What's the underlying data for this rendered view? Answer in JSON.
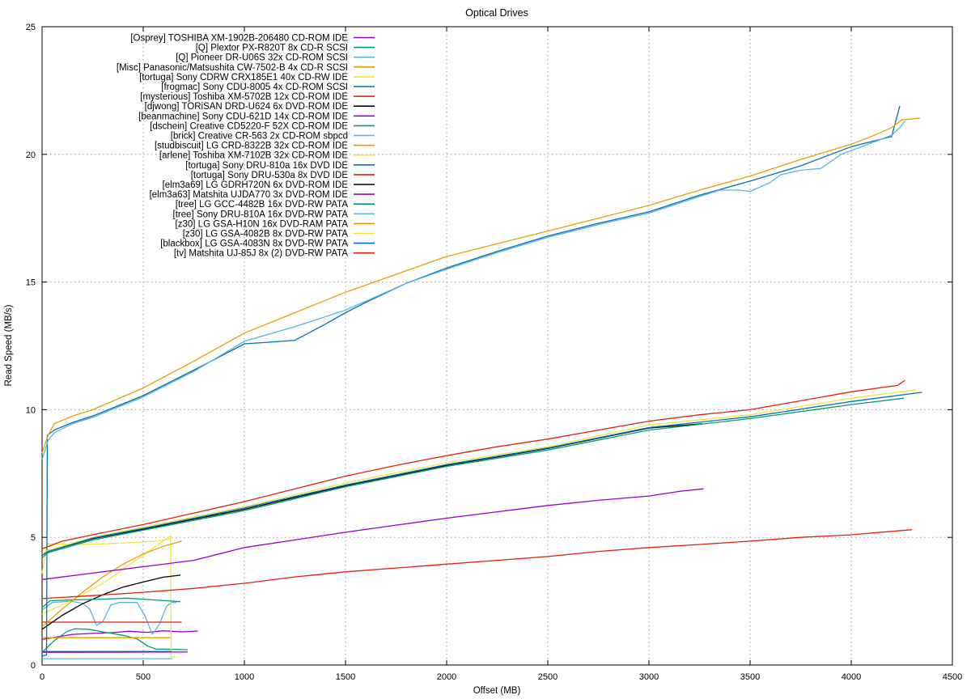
{
  "chart_data": {
    "type": "line",
    "title": "Optical Drives",
    "xlabel": "Offset (MB)",
    "ylabel": "Read Speed (MB/s)",
    "xlim": [
      0,
      4500
    ],
    "ylim": [
      0,
      25
    ],
    "x_ticks": [
      0,
      500,
      1000,
      1500,
      2000,
      2500,
      3000,
      3500,
      4000,
      4500
    ],
    "y_ticks": [
      0,
      5,
      10,
      15,
      20,
      25
    ],
    "grid": true,
    "grid_style": "dotted",
    "legend_position": "top-left-inside",
    "palette_cycle": [
      "#9400d3",
      "#009e73",
      "#56b4e9",
      "#e69f00",
      "#f0e442",
      "#0072b2",
      "#e51e10",
      "#000000"
    ],
    "series": [
      {
        "name": "[Osprey] TOSHIBA XM-1902B-206480 CD-ROM IDE",
        "color": "#9400d3",
        "points": [
          [
            0,
            1.0
          ],
          [
            60,
            1.08
          ],
          [
            150,
            1.2
          ],
          [
            250,
            1.24
          ],
          [
            350,
            1.27
          ],
          [
            430,
            1.32
          ],
          [
            520,
            1.28
          ],
          [
            600,
            1.34
          ],
          [
            690,
            1.3
          ],
          [
            770,
            1.33
          ]
        ]
      },
      {
        "name": "[Q] Plextor PX-R820T 8x CD-R SCSI",
        "color": "#009e73",
        "points": [
          [
            0,
            0.5
          ],
          [
            60,
            0.95
          ],
          [
            120,
            1.3
          ],
          [
            160,
            1.42
          ],
          [
            230,
            1.4
          ],
          [
            320,
            1.27
          ],
          [
            410,
            1.15
          ],
          [
            470,
            1.02
          ],
          [
            520,
            0.75
          ],
          [
            560,
            0.63
          ],
          [
            650,
            0.61
          ],
          [
            720,
            0.6
          ]
        ]
      },
      {
        "name": "[Q] Pioneer DR-U06S 32x CD-ROM SCSI",
        "color": "#56b4e9",
        "points": [
          [
            0,
            2.15
          ],
          [
            50,
            2.45
          ],
          [
            140,
            2.5
          ],
          [
            200,
            2.42
          ],
          [
            235,
            2.2
          ],
          [
            270,
            1.55
          ],
          [
            300,
            1.7
          ],
          [
            340,
            2.35
          ],
          [
            380,
            2.45
          ],
          [
            470,
            2.45
          ],
          [
            510,
            1.9
          ],
          [
            545,
            1.2
          ],
          [
            580,
            1.6
          ],
          [
            615,
            2.3
          ],
          [
            640,
            2.45
          ],
          [
            665,
            2.45
          ]
        ]
      },
      {
        "name": "[Misc] Panasonic/Matsushita CW-7502-B 4x CD-R SCSI",
        "color": "#e69f00",
        "points": [
          [
            5,
            1.07
          ],
          [
            640,
            1.07
          ]
        ]
      },
      {
        "name": "[tortuga] Sony CDRW CRX185E1 40x CD-RW IDE",
        "color": "#f0e442",
        "points": [
          [
            0,
            2.0
          ],
          [
            100,
            2.35
          ],
          [
            200,
            2.75
          ],
          [
            300,
            3.2
          ],
          [
            400,
            3.75
          ],
          [
            500,
            4.3
          ],
          [
            570,
            4.7
          ],
          [
            635,
            5.05
          ],
          [
            638,
            0.32
          ],
          [
            660,
            0.3
          ]
        ]
      },
      {
        "name": "[frogmac] Sony CDU-8005 4x CD-ROM SCSI",
        "color": "#0072b2",
        "points": [
          [
            0,
            0.53
          ],
          [
            640,
            0.53
          ]
        ]
      },
      {
        "name": "[mysterious] Toshiba XM-5702B 12x CD-ROM IDE",
        "color": "#e51e10",
        "points": [
          [
            0,
            1.68
          ],
          [
            690,
            1.68
          ]
        ]
      },
      {
        "name": "[djwong] TORiSAN DRD-U624 6x DVD-ROM IDE",
        "color": "#000000",
        "points": [
          [
            0,
            1.4
          ],
          [
            100,
            1.95
          ],
          [
            200,
            2.4
          ],
          [
            300,
            2.75
          ],
          [
            400,
            3.05
          ],
          [
            500,
            3.25
          ],
          [
            600,
            3.44
          ],
          [
            684,
            3.52
          ]
        ]
      },
      {
        "name": "[beanmachine] Sony CDU-621D 14x CD-ROM IDE",
        "color": "#9400d3",
        "points": [
          [
            0,
            0.5
          ],
          [
            720,
            0.51
          ]
        ]
      },
      {
        "name": "[dschein] Creative CD5220-F 52X CD-ROM IDE",
        "color": "#009e73",
        "points": [
          [
            0,
            2.25
          ],
          [
            40,
            2.52
          ],
          [
            150,
            2.55
          ],
          [
            300,
            2.58
          ],
          [
            420,
            2.62
          ],
          [
            550,
            2.55
          ],
          [
            684,
            2.48
          ]
        ]
      },
      {
        "name": "[brick] Creative CR-563 2x CD-ROM sbpcd",
        "color": "#56b4e9",
        "points": [
          [
            0,
            0.25
          ],
          [
            645,
            0.25
          ]
        ]
      },
      {
        "name": "[studbiscuit] LG CRD-8322B 32x CD-ROM IDE",
        "color": "#e69f00",
        "points": [
          [
            0,
            1.5
          ],
          [
            100,
            2.2
          ],
          [
            200,
            2.85
          ],
          [
            300,
            3.45
          ],
          [
            400,
            3.95
          ],
          [
            500,
            4.35
          ],
          [
            600,
            4.65
          ],
          [
            690,
            4.85
          ]
        ]
      },
      {
        "name": "[arlene] Toshiba XM-7102B 32x CD-ROM IDE",
        "color": "#f0e442",
        "points": [
          [
            0,
            3.6
          ],
          [
            25,
            4.75
          ],
          [
            150,
            4.72
          ],
          [
            300,
            4.74
          ],
          [
            450,
            4.8
          ],
          [
            570,
            4.85
          ],
          [
            635,
            4.95
          ]
        ]
      },
      {
        "name": "[tortuga] Sony DRU-810a 16x DVD IDE",
        "color": "#0072b2",
        "points": [
          [
            0,
            0.35
          ],
          [
            22,
            0.4
          ],
          [
            26,
            9.0
          ],
          [
            60,
            9.2
          ],
          [
            150,
            9.5
          ],
          [
            250,
            9.75
          ],
          [
            500,
            10.55
          ],
          [
            750,
            11.55
          ],
          [
            1000,
            12.58
          ],
          [
            1100,
            12.63
          ],
          [
            1250,
            12.72
          ],
          [
            1400,
            13.35
          ],
          [
            1500,
            13.8
          ],
          [
            1600,
            14.2
          ],
          [
            1800,
            14.95
          ],
          [
            2000,
            15.55
          ],
          [
            2250,
            16.2
          ],
          [
            2500,
            16.8
          ],
          [
            2750,
            17.3
          ],
          [
            3000,
            17.75
          ],
          [
            3250,
            18.4
          ],
          [
            3500,
            18.95
          ],
          [
            3750,
            19.55
          ],
          [
            4000,
            20.3
          ],
          [
            4100,
            20.5
          ],
          [
            4200,
            20.7
          ],
          [
            4240,
            21.9
          ]
        ]
      },
      {
        "name": "[tortuga] Sony DRU-530a 8x DVD IDE",
        "color": "#e51e10",
        "points": [
          [
            0,
            4.55
          ],
          [
            100,
            4.85
          ],
          [
            250,
            5.1
          ],
          [
            500,
            5.5
          ],
          [
            750,
            5.95
          ],
          [
            1000,
            6.4
          ],
          [
            1250,
            6.9
          ],
          [
            1500,
            7.4
          ],
          [
            1750,
            7.82
          ],
          [
            2000,
            8.2
          ],
          [
            2250,
            8.55
          ],
          [
            2500,
            8.85
          ],
          [
            2750,
            9.2
          ],
          [
            3000,
            9.55
          ],
          [
            3250,
            9.8
          ],
          [
            3500,
            10.0
          ],
          [
            3750,
            10.35
          ],
          [
            4000,
            10.7
          ],
          [
            4180,
            10.9
          ],
          [
            4230,
            10.95
          ],
          [
            4265,
            11.15
          ]
        ]
      },
      {
        "name": "[elm3a69] LG GDRH720N 6x DVD-ROM IDE",
        "color": "#000000",
        "points": [
          [
            0,
            4.3
          ],
          [
            30,
            4.45
          ],
          [
            250,
            4.95
          ],
          [
            500,
            5.32
          ],
          [
            1000,
            6.1
          ],
          [
            1500,
            7.02
          ],
          [
            2000,
            7.82
          ],
          [
            2500,
            8.48
          ],
          [
            3000,
            9.28
          ],
          [
            3265,
            9.45
          ]
        ]
      },
      {
        "name": "[elm3a63] Matshita UJDA770 3x DVD-ROM IDE",
        "color": "#9400d3",
        "points": [
          [
            0,
            3.35
          ],
          [
            250,
            3.6
          ],
          [
            500,
            3.85
          ],
          [
            750,
            4.1
          ],
          [
            1000,
            4.6
          ],
          [
            1250,
            4.9
          ],
          [
            1500,
            5.2
          ],
          [
            1750,
            5.48
          ],
          [
            2000,
            5.75
          ],
          [
            2250,
            6.0
          ],
          [
            2500,
            6.25
          ],
          [
            2750,
            6.45
          ],
          [
            3000,
            6.62
          ],
          [
            3150,
            6.8
          ],
          [
            3270,
            6.9
          ]
        ]
      },
      {
        "name": "[tree] LG GCC-4482B 16x DVD-RW PATA",
        "color": "#009e73",
        "points": [
          [
            0,
            4.2
          ],
          [
            30,
            4.4
          ],
          [
            250,
            4.9
          ],
          [
            500,
            5.28
          ],
          [
            1000,
            6.05
          ],
          [
            1500,
            6.98
          ],
          [
            2000,
            7.78
          ],
          [
            2500,
            8.42
          ],
          [
            3000,
            9.2
          ],
          [
            3500,
            9.65
          ],
          [
            4000,
            10.2
          ],
          [
            4260,
            10.45
          ]
        ]
      },
      {
        "name": "[tree] Sony DRU-810A 16x DVD-RW PATA",
        "color": "#56b4e9",
        "points": [
          [
            0,
            8.05
          ],
          [
            30,
            8.8
          ],
          [
            60,
            9.1
          ],
          [
            150,
            9.45
          ],
          [
            250,
            9.7
          ],
          [
            500,
            10.5
          ],
          [
            750,
            11.5
          ],
          [
            1000,
            12.68
          ],
          [
            1250,
            13.25
          ],
          [
            1500,
            13.9
          ],
          [
            1600,
            14.25
          ],
          [
            1800,
            14.95
          ],
          [
            2000,
            15.5
          ],
          [
            2250,
            16.15
          ],
          [
            2500,
            16.75
          ],
          [
            2750,
            17.25
          ],
          [
            3000,
            17.7
          ],
          [
            3250,
            18.35
          ],
          [
            3350,
            18.6
          ],
          [
            3450,
            18.6
          ],
          [
            3500,
            18.55
          ],
          [
            3600,
            18.9
          ],
          [
            3650,
            19.2
          ],
          [
            3750,
            19.38
          ],
          [
            3850,
            19.45
          ],
          [
            3950,
            20.0
          ],
          [
            4000,
            20.15
          ],
          [
            4100,
            20.45
          ],
          [
            4200,
            20.75
          ],
          [
            4240,
            21.05
          ],
          [
            4265,
            21.3
          ]
        ]
      },
      {
        "name": "[z30] LG GSA-H10N 16x DVD-RAM PATA",
        "color": "#e69f00",
        "points": [
          [
            0,
            8.3
          ],
          [
            30,
            9.0
          ],
          [
            60,
            9.45
          ],
          [
            150,
            9.75
          ],
          [
            250,
            10.0
          ],
          [
            500,
            10.85
          ],
          [
            750,
            11.9
          ],
          [
            1000,
            13.0
          ],
          [
            1250,
            13.8
          ],
          [
            1500,
            14.6
          ],
          [
            1750,
            15.3
          ],
          [
            2000,
            16.0
          ],
          [
            2250,
            16.5
          ],
          [
            2500,
            17.0
          ],
          [
            2750,
            17.5
          ],
          [
            3000,
            18.0
          ],
          [
            3250,
            18.6
          ],
          [
            3500,
            19.15
          ],
          [
            3750,
            19.8
          ],
          [
            4000,
            20.4
          ],
          [
            4100,
            20.7
          ],
          [
            4200,
            21.05
          ],
          [
            4250,
            21.35
          ],
          [
            4340,
            21.42
          ]
        ]
      },
      {
        "name": "[z30] LG GSA-4082B 8x DVD-RW PATA",
        "color": "#f0e442",
        "points": [
          [
            0,
            4.35
          ],
          [
            30,
            4.5
          ],
          [
            250,
            5.0
          ],
          [
            500,
            5.4
          ],
          [
            1000,
            6.2
          ],
          [
            1500,
            7.13
          ],
          [
            2000,
            7.92
          ],
          [
            2500,
            8.55
          ],
          [
            3000,
            9.4
          ],
          [
            3500,
            9.8
          ],
          [
            4000,
            10.45
          ],
          [
            4320,
            10.78
          ]
        ]
      },
      {
        "name": "[blackbox] LG GSA-4083N 8x DVD-RW PATA",
        "color": "#0072b2",
        "points": [
          [
            0,
            4.3
          ],
          [
            30,
            4.45
          ],
          [
            250,
            4.97
          ],
          [
            500,
            5.35
          ],
          [
            1000,
            6.15
          ],
          [
            1500,
            7.05
          ],
          [
            2000,
            7.85
          ],
          [
            2500,
            8.5
          ],
          [
            3000,
            9.3
          ],
          [
            3500,
            9.72
          ],
          [
            4000,
            10.32
          ],
          [
            4350,
            10.68
          ]
        ]
      },
      {
        "name": "[tv] Matshita UJ-85J 8x (2) DVD-RW PATA",
        "color": "#e51e10",
        "points": [
          [
            0,
            2.6
          ],
          [
            250,
            2.72
          ],
          [
            500,
            2.85
          ],
          [
            750,
            3.0
          ],
          [
            1000,
            3.2
          ],
          [
            1250,
            3.45
          ],
          [
            1500,
            3.65
          ],
          [
            1750,
            3.8
          ],
          [
            2000,
            3.95
          ],
          [
            2250,
            4.1
          ],
          [
            2500,
            4.25
          ],
          [
            2750,
            4.45
          ],
          [
            3000,
            4.6
          ],
          [
            3250,
            4.72
          ],
          [
            3500,
            4.85
          ],
          [
            3750,
            5.0
          ],
          [
            4000,
            5.1
          ],
          [
            4300,
            5.3
          ]
        ]
      }
    ]
  },
  "style": {
    "background": "#ffffff",
    "border_color": "#000000",
    "grid_color": "#9e9e9e",
    "text_color": "#000000"
  }
}
